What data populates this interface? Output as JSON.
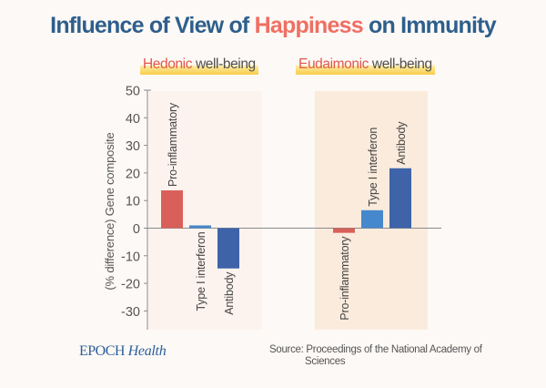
{
  "chart_data": {
    "type": "bar",
    "title": {
      "before": "Influence of View of ",
      "highlight": "Happiness",
      "after": " on Immunity"
    },
    "ylabel": "(% difference) Gene composite",
    "xlabel": "",
    "ylim": [
      -37,
      50
    ],
    "yticks": [
      50,
      40,
      30,
      20,
      10,
      0,
      -10,
      -20,
      -30
    ],
    "grid": false,
    "legend": "none",
    "groups": [
      {
        "name_accent": "Hedonic",
        "name_rest": " well-being",
        "categories": [
          "Pro-inflammatory",
          "Type I interferon",
          "Antibody"
        ],
        "values": [
          13.7,
          1.0,
          -14.6
        ]
      },
      {
        "name_accent": "Eudaimonic",
        "name_rest": " well-being",
        "categories": [
          "Pro-inflammatory",
          "Type I interferon",
          "Antibody"
        ],
        "values": [
          -1.7,
          6.5,
          21.7
        ]
      }
    ],
    "series_colors": {
      "Pro-inflammatory": "#d9605a",
      "Type I interferon": "#4688cc",
      "Antibody": "#3e63a8"
    },
    "panel_colors": [
      "#fdf3ee",
      "#fbebdc"
    ]
  },
  "footer": {
    "logo_brand": "EPOCH",
    "logo_sub": "Health",
    "source_line1": "Source: Proceedings of the National Academy of",
    "source_line2": "Sciences"
  }
}
